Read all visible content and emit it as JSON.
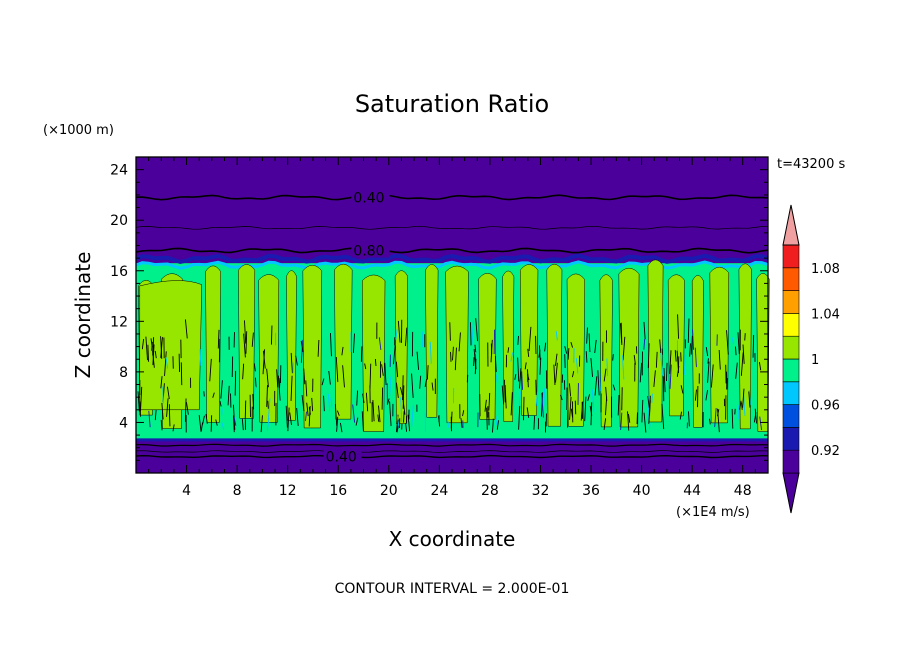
{
  "chart_data": {
    "type": "heatmap",
    "title": "Saturation Ratio",
    "xlabel": "X coordinate",
    "ylabel": "Z coordinate",
    "x_unit": "(×1E4 m/s)",
    "y_unit": "(×1000 m)",
    "time_label": "t=43200 s",
    "footer": "CONTOUR INTERVAL = 2.000E-01",
    "xlim": [
      0,
      50
    ],
    "ylim": [
      0,
      25
    ],
    "x_ticks": [
      4,
      8,
      12,
      16,
      20,
      24,
      28,
      32,
      36,
      40,
      44,
      48
    ],
    "y_ticks": [
      4,
      8,
      12,
      16,
      20,
      24
    ],
    "contour_labels": [
      {
        "text": "0.40",
        "x": 17.2,
        "z": 21.8
      },
      {
        "text": "0.80",
        "x": 17.2,
        "z": 17.6
      },
      {
        "text": "0.40",
        "x": 15.0,
        "z": 1.3
      }
    ],
    "colorbar": {
      "levels": [
        0.9,
        0.92,
        0.94,
        0.96,
        0.98,
        1.0,
        1.02,
        1.04,
        1.06,
        1.08,
        1.1
      ],
      "tick_labels": [
        "0.92",
        "0.96",
        "1",
        "1.04",
        "1.08"
      ],
      "colors": [
        "#4b009b",
        "#1a1ab0",
        "#0050e0",
        "#00c8ff",
        "#00f08c",
        "#96e600",
        "#ffff00",
        "#ffa000",
        "#ff5a00",
        "#f01e1e",
        "#f0a0a0"
      ],
      "extend": "both"
    },
    "fields": [
      {
        "name": "subsaturated_upper",
        "z_range": [
          16.6,
          25
        ],
        "value": "< 0.90"
      },
      {
        "name": "cloud_layer",
        "z_range": [
          2.7,
          16.6
        ],
        "value": "0.98 - 1.02"
      },
      {
        "name": "subsaturated_lower",
        "z_range": [
          0,
          2.7
        ],
        "value": "< 0.90"
      }
    ]
  }
}
